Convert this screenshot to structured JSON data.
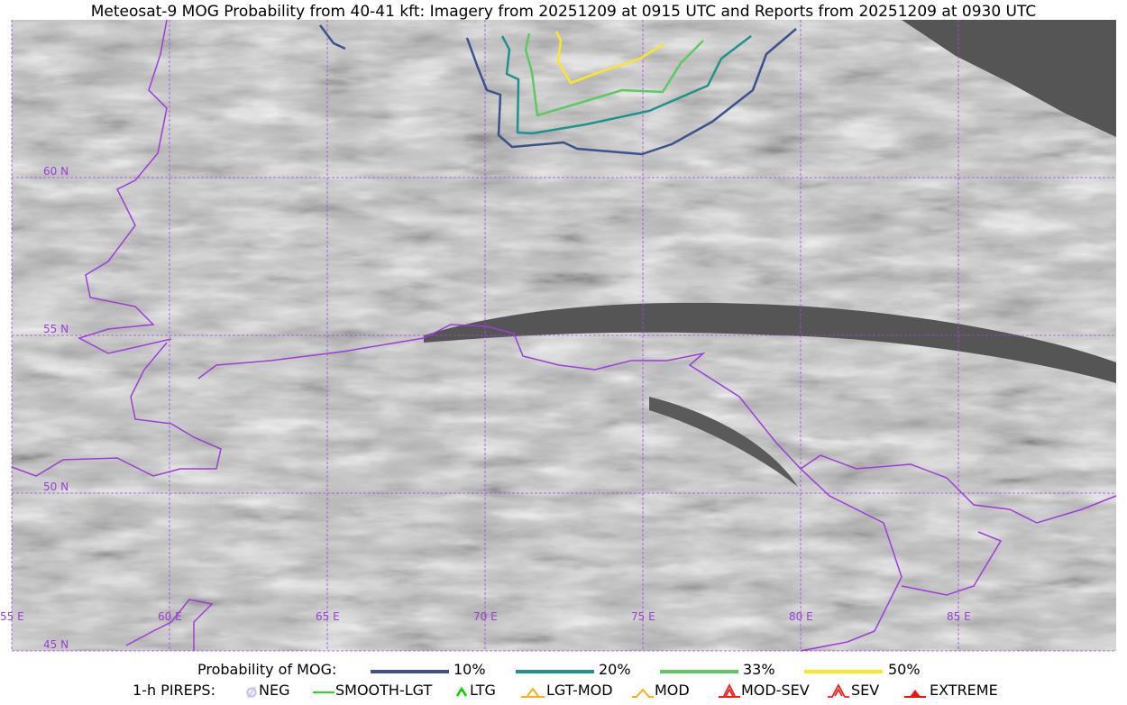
{
  "title": "Meteosat-9 MOG Probability from 40-41 kft: Imagery from 20251209 at 0915 UTC and Reports from 20251209 at 0930 UTC",
  "map": {
    "lat_labels": [
      "60 N",
      "55 N",
      "50 N",
      "45 N"
    ],
    "lon_labels": [
      "55 E",
      "60 E",
      "65 E",
      "70 E",
      "75 E",
      "80 E",
      "85 E"
    ],
    "border_color": "#9b3fd6",
    "contours": [
      {
        "level": "10%",
        "color": "#3b528b"
      },
      {
        "level": "20%",
        "color": "#21918c"
      },
      {
        "level": "33%",
        "color": "#5ec962"
      },
      {
        "level": "50%",
        "color": "#fde725"
      }
    ]
  },
  "legend": {
    "prob_label": "Probability of MOG:",
    "prob_items": [
      {
        "label": "10%",
        "color": "#3b528b"
      },
      {
        "label": "20%",
        "color": "#21918c"
      },
      {
        "label": "33%",
        "color": "#5ec962"
      },
      {
        "label": "50%",
        "color": "#fde725"
      }
    ],
    "pirep_label": "1-h PIREPS:",
    "pirep_items": [
      {
        "label": "NEG",
        "icon": "neg-icon",
        "color": "#c8c8f0"
      },
      {
        "label": "SMOOTH-LGT",
        "icon": "line-icon",
        "color": "#22dd22"
      },
      {
        "label": "LTG",
        "icon": "caret-icon",
        "color": "#00cc00"
      },
      {
        "label": "LGT-MOD",
        "icon": "caret-bar-icon",
        "color": "#f5b021"
      },
      {
        "label": "MOD",
        "icon": "caret-icon",
        "color": "#f5b021"
      },
      {
        "label": "MOD-SEV",
        "icon": "double-caret-bar-icon",
        "color": "#ee2222"
      },
      {
        "label": "SEV",
        "icon": "double-caret-icon",
        "color": "#ee2222"
      },
      {
        "label": "EXTREME",
        "icon": "filled-triangle-icon",
        "color": "#ee1111"
      }
    ]
  }
}
